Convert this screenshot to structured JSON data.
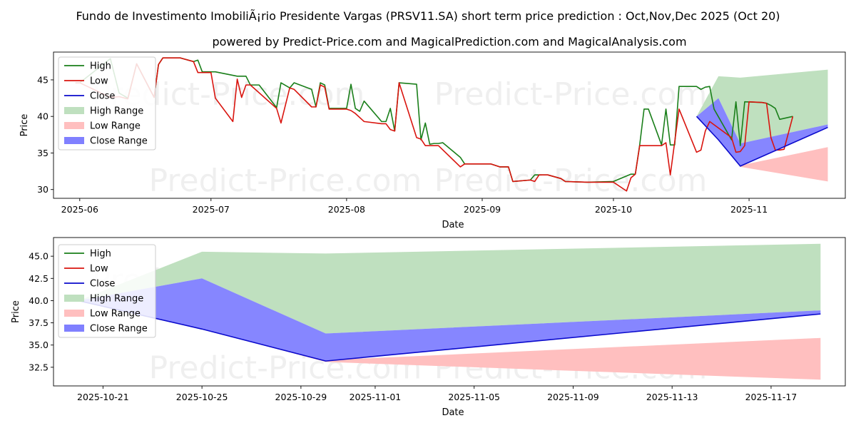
{
  "title": "Fundo de Investimento ImobiliÃ¡rio Presidente Vargas (PRSV11.SA) short term price prediction : Oct,Nov,Dec 2025 (Oct 20)",
  "subtitle": "powered by Predict-Price.com and MagicalPrediction.com and MagicalAnalysis.com",
  "watermark": "Predict-Price.com",
  "colors": {
    "high": "#1a7f1a",
    "low": "#d9140e",
    "close": "#0a0acc",
    "high_range": "#bfe0bf",
    "low_range": "#ffbfbf",
    "close_range": "#8080ff"
  },
  "chart_data": [
    {
      "type": "line",
      "xlabel": "Date",
      "ylabel": "Price",
      "x_ticks": [
        "2025-06",
        "2025-07",
        "2025-08",
        "2025-09",
        "2025-10",
        "2025-11"
      ],
      "y_ticks": [
        30,
        35,
        40,
        45
      ],
      "ylim": [
        28.8,
        48.8
      ],
      "legend_position": "top-left",
      "legend": [
        "High",
        "Low",
        "Close",
        "High Range",
        "Low Range",
        "Close Range"
      ],
      "series": [
        {
          "name": "High",
          "points": [
            [
              "2025-05-31",
              44.6
            ],
            [
              "2025-06-01",
              44.6
            ],
            [
              "2025-06-08",
              47.9
            ],
            [
              "2025-06-10",
              43.2
            ],
            [
              "2025-06-12",
              42.5
            ],
            [
              "2025-06-14",
              47.2
            ],
            [
              "2025-06-18",
              42.6
            ],
            [
              "2025-06-19",
              47.1
            ],
            [
              "2025-06-20",
              48.0
            ],
            [
              "2025-06-24",
              48.0
            ],
            [
              "2025-06-27",
              47.5
            ],
            [
              "2025-06-28",
              47.7
            ],
            [
              "2025-06-29",
              46.1
            ],
            [
              "2025-07-02",
              46.1
            ],
            [
              "2025-07-07",
              45.5
            ],
            [
              "2025-07-09",
              45.5
            ],
            [
              "2025-07-10",
              44.3
            ],
            [
              "2025-07-12",
              44.3
            ],
            [
              "2025-07-16",
              41.2
            ],
            [
              "2025-07-17",
              44.6
            ],
            [
              "2025-07-19",
              43.9
            ],
            [
              "2025-07-20",
              44.6
            ],
            [
              "2025-07-24",
              43.7
            ],
            [
              "2025-07-25",
              41.3
            ],
            [
              "2025-07-26",
              44.6
            ],
            [
              "2025-07-27",
              44.3
            ],
            [
              "2025-07-28",
              41.1
            ],
            [
              "2025-08-01",
              41.1
            ],
            [
              "2025-08-02",
              44.4
            ],
            [
              "2025-08-03",
              41.1
            ],
            [
              "2025-08-04",
              40.7
            ],
            [
              "2025-08-05",
              42.1
            ],
            [
              "2025-08-09",
              39.3
            ],
            [
              "2025-08-10",
              39.3
            ],
            [
              "2025-08-11",
              41.1
            ],
            [
              "2025-08-12",
              38.0
            ],
            [
              "2025-08-13",
              44.6
            ],
            [
              "2025-08-17",
              44.4
            ],
            [
              "2025-08-18",
              36.8
            ],
            [
              "2025-08-19",
              39.1
            ],
            [
              "2025-08-20",
              36.2
            ],
            [
              "2025-08-21",
              36.3
            ],
            [
              "2025-08-22",
              36.3
            ],
            [
              "2025-08-23",
              36.4
            ],
            [
              "2025-08-27",
              34.4
            ],
            [
              "2025-08-28",
              33.5
            ],
            [
              "2025-09-03",
              33.5
            ],
            [
              "2025-09-05",
              33.1
            ],
            [
              "2025-09-06",
              33.1
            ],
            [
              "2025-09-07",
              33.1
            ],
            [
              "2025-09-08",
              31.1
            ],
            [
              "2025-09-12",
              31.3
            ],
            [
              "2025-09-13",
              32.0
            ],
            [
              "2025-09-16",
              32.0
            ],
            [
              "2025-09-19",
              31.5
            ],
            [
              "2025-09-20",
              31.1
            ],
            [
              "2025-09-25",
              31.0
            ],
            [
              "2025-10-01",
              31.1
            ],
            [
              "2025-10-05",
              32.1
            ],
            [
              "2025-10-06",
              32.1
            ],
            [
              "2025-10-07",
              36.1
            ],
            [
              "2025-10-08",
              41.0
            ],
            [
              "2025-10-09",
              41.0
            ],
            [
              "2025-10-12",
              36.1
            ],
            [
              "2025-10-13",
              41.0
            ],
            [
              "2025-10-14",
              36.1
            ],
            [
              "2025-10-15",
              36.1
            ],
            [
              "2025-10-16",
              44.1
            ],
            [
              "2025-10-20",
              44.1
            ],
            [
              "2025-10-21",
              43.7
            ],
            [
              "2025-10-22",
              44.0
            ],
            [
              "2025-10-23",
              44.1
            ],
            [
              "2025-10-24",
              41.0
            ],
            [
              "2025-10-28",
              36.8
            ],
            [
              "2025-10-29",
              42.0
            ],
            [
              "2025-10-30",
              36.0
            ],
            [
              "2025-10-31",
              42.0
            ],
            [
              "2025-11-04",
              41.9
            ],
            [
              "2025-11-05",
              41.8
            ],
            [
              "2025-11-06",
              41.5
            ],
            [
              "2025-11-07",
              41.1
            ],
            [
              "2025-11-08",
              39.6
            ],
            [
              "2025-11-11",
              40.0
            ]
          ]
        },
        {
          "name": "Low",
          "points": [
            [
              "2025-05-31",
              44.6
            ],
            [
              "2025-06-01",
              44.6
            ],
            [
              "2025-06-08",
              42.6
            ],
            [
              "2025-06-10",
              42.7
            ],
            [
              "2025-06-12",
              42.4
            ],
            [
              "2025-06-14",
              47.2
            ],
            [
              "2025-06-18",
              42.6
            ],
            [
              "2025-06-19",
              47.1
            ],
            [
              "2025-06-20",
              48.0
            ],
            [
              "2025-06-24",
              48.0
            ],
            [
              "2025-06-27",
              47.5
            ],
            [
              "2025-06-28",
              46.0
            ],
            [
              "2025-06-29",
              46.0
            ],
            [
              "2025-07-01",
              46.0
            ],
            [
              "2025-07-02",
              42.5
            ],
            [
              "2025-07-06",
              39.3
            ],
            [
              "2025-07-07",
              45.1
            ],
            [
              "2025-07-08",
              42.6
            ],
            [
              "2025-07-09",
              44.3
            ],
            [
              "2025-07-10",
              44.3
            ],
            [
              "2025-07-16",
              41.1
            ],
            [
              "2025-07-17",
              39.1
            ],
            [
              "2025-07-19",
              43.9
            ],
            [
              "2025-07-20",
              43.7
            ],
            [
              "2025-07-24",
              41.3
            ],
            [
              "2025-07-25",
              41.3
            ],
            [
              "2025-07-26",
              44.3
            ],
            [
              "2025-07-27",
              44.0
            ],
            [
              "2025-07-28",
              41.0
            ],
            [
              "2025-08-01",
              41.0
            ],
            [
              "2025-08-02",
              40.8
            ],
            [
              "2025-08-03",
              40.4
            ],
            [
              "2025-08-05",
              39.3
            ],
            [
              "2025-08-09",
              39.0
            ],
            [
              "2025-08-10",
              39.0
            ],
            [
              "2025-08-11",
              38.2
            ],
            [
              "2025-08-12",
              38.0
            ],
            [
              "2025-08-13",
              44.6
            ],
            [
              "2025-08-17",
              37.1
            ],
            [
              "2025-08-18",
              36.9
            ],
            [
              "2025-08-19",
              36.0
            ],
            [
              "2025-08-22",
              36.0
            ],
            [
              "2025-08-27",
              33.1
            ],
            [
              "2025-08-28",
              33.5
            ],
            [
              "2025-09-03",
              33.5
            ],
            [
              "2025-09-05",
              33.1
            ],
            [
              "2025-09-07",
              33.1
            ],
            [
              "2025-09-08",
              31.1
            ],
            [
              "2025-09-12",
              31.3
            ],
            [
              "2025-09-13",
              31.1
            ],
            [
              "2025-09-14",
              32.0
            ],
            [
              "2025-09-16",
              32.0
            ],
            [
              "2025-09-19",
              31.5
            ],
            [
              "2025-09-20",
              31.1
            ],
            [
              "2025-09-25",
              31.0
            ],
            [
              "2025-10-01",
              31.0
            ],
            [
              "2025-10-04",
              29.8
            ],
            [
              "2025-10-05",
              31.6
            ],
            [
              "2025-10-06",
              32.1
            ],
            [
              "2025-10-07",
              36.0
            ],
            [
              "2025-10-12",
              36.0
            ],
            [
              "2025-10-13",
              36.4
            ],
            [
              "2025-10-14",
              32.0
            ],
            [
              "2025-10-16",
              41.0
            ],
            [
              "2025-10-20",
              35.1
            ],
            [
              "2025-10-21",
              35.4
            ],
            [
              "2025-10-22",
              38.0
            ],
            [
              "2025-10-23",
              39.3
            ],
            [
              "2025-10-28",
              37.1
            ],
            [
              "2025-10-29",
              35.1
            ],
            [
              "2025-10-30",
              35.2
            ],
            [
              "2025-10-31",
              36.0
            ],
            [
              "2025-11-01",
              42.0
            ],
            [
              "2025-11-04",
              41.9
            ],
            [
              "2025-11-05",
              41.8
            ],
            [
              "2025-11-06",
              37.1
            ],
            [
              "2025-11-07",
              35.4
            ],
            [
              "2025-11-08",
              35.4
            ],
            [
              "2025-11-09",
              35.5
            ],
            [
              "2025-11-11",
              40.0
            ]
          ]
        },
        {
          "name": "Close",
          "points": [
            [
              "2025-10-20",
              40.0
            ],
            [
              "2025-10-25",
              36.8
            ],
            [
              "2025-10-30",
              33.2
            ],
            [
              "2025-11-19",
              38.5
            ]
          ]
        }
      ],
      "ranges": [
        {
          "name": "High Range",
          "points": [
            [
              "2025-10-20",
              40.0,
              40.0
            ],
            [
              "2025-10-25",
              45.5,
              42.5
            ],
            [
              "2025-10-30",
              45.3,
              36.3
            ],
            [
              "2025-11-19",
              46.4,
              38.9
            ]
          ]
        },
        {
          "name": "Low Range",
          "points": [
            [
              "2025-10-20",
              40.0,
              40.0
            ],
            [
              "2025-10-25",
              36.8,
              36.8
            ],
            [
              "2025-10-30",
              33.3,
              33.1
            ],
            [
              "2025-11-19",
              35.8,
              31.1
            ]
          ]
        },
        {
          "name": "Close Range",
          "points": [
            [
              "2025-10-20",
              40.0,
              40.0
            ],
            [
              "2025-10-25",
              42.5,
              36.8
            ],
            [
              "2025-10-30",
              36.3,
              33.2
            ],
            [
              "2025-11-19",
              38.9,
              38.5
            ]
          ]
        }
      ]
    },
    {
      "type": "line",
      "xlabel": "Date",
      "ylabel": "Price",
      "x_ticks": [
        "2025-10-21",
        "2025-10-25",
        "2025-10-29",
        "2025-11-01",
        "2025-11-05",
        "2025-11-09",
        "2025-11-13",
        "2025-11-17"
      ],
      "y_ticks": [
        32.5,
        35.0,
        37.5,
        40.0,
        42.5,
        45.0
      ],
      "ylim": [
        30.4,
        47.1
      ],
      "legend_position": "top-left",
      "legend": [
        "High",
        "Low",
        "Close",
        "High Range",
        "Low Range",
        "Close Range"
      ],
      "series": [
        {
          "name": "Close",
          "points": [
            [
              "2025-10-20",
              40.0
            ],
            [
              "2025-10-25",
              36.8
            ],
            [
              "2025-10-30",
              33.2
            ],
            [
              "2025-11-19",
              38.5
            ]
          ]
        }
      ],
      "ranges": [
        {
          "name": "High Range",
          "points": [
            [
              "2025-10-20",
              40.0,
              40.0
            ],
            [
              "2025-10-25",
              45.5,
              42.5
            ],
            [
              "2025-10-30",
              45.3,
              36.3
            ],
            [
              "2025-11-19",
              46.4,
              38.9
            ]
          ]
        },
        {
          "name": "Low Range",
          "points": [
            [
              "2025-10-20",
              40.0,
              40.0
            ],
            [
              "2025-10-25",
              36.8,
              36.8
            ],
            [
              "2025-10-30",
              33.3,
              33.1
            ],
            [
              "2025-11-19",
              35.8,
              31.1
            ]
          ]
        },
        {
          "name": "Close Range",
          "points": [
            [
              "2025-10-20",
              40.0,
              40.0
            ],
            [
              "2025-10-25",
              42.5,
              36.8
            ],
            [
              "2025-10-30",
              36.3,
              33.2
            ],
            [
              "2025-11-19",
              38.9,
              38.5
            ]
          ]
        }
      ]
    }
  ]
}
